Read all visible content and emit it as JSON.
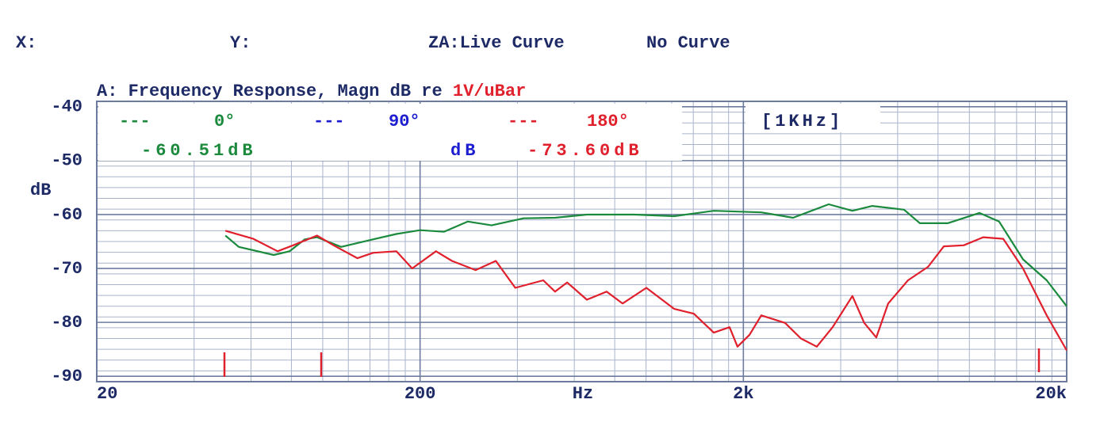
{
  "chart_data": {
    "type": "line",
    "header": [
      "X:",
      "Y:",
      "ZA:Live Curve",
      "No Curve"
    ],
    "title": "A: Frequency Response, Magn dB re",
    "title_unit": "1V/uBar",
    "note": "[1KHz]",
    "x_label": "Hz",
    "y_label": "dB",
    "log_x": true,
    "grid": true,
    "xlim": [
      20,
      20000
    ],
    "xticks": [
      20,
      200,
      {
        "value": 2000,
        "label": "2k"
      },
      {
        "value": 20000,
        "label": "20k"
      }
    ],
    "ylim": [
      -91,
      -39
    ],
    "yticks": [
      -40,
      -50,
      -60,
      -70,
      -80,
      -90
    ],
    "readouts": [
      "-60.51dB",
      "dB",
      "-73.60dB"
    ],
    "series": [
      {
        "name": "0°",
        "color": "#1b8a3c",
        "x": [
          50,
          55,
          70.5,
          79,
          88,
          96,
          114,
          143,
          169,
          200,
          237,
          281,
          333,
          418,
          523,
          656,
          921,
          1222,
          1620,
          2272,
          2850,
          3672,
          4347,
          5010,
          6280,
          7030,
          8570,
          10740,
          12360,
          14650,
          17350,
          20000
        ],
        "values": [
          -63.9,
          -66,
          -67.5,
          -66.8,
          -64.6,
          -64.2,
          -66,
          -64.6,
          -63.6,
          -62.9,
          -63.2,
          -61.3,
          -62,
          -60.7,
          -60.6,
          -60,
          -60,
          -60.3,
          -59.3,
          -59.6,
          -60.6,
          -58.1,
          -59.3,
          -58.4,
          -59.1,
          -61.6,
          -61.6,
          -59.7,
          -61.3,
          -68.3,
          -72.2,
          -77
        ]
      },
      {
        "name": "90°",
        "color": "#1c1cd0",
        "x": [],
        "values": []
      },
      {
        "name": "180°",
        "color": "#e0202c",
        "x": [
          50,
          61,
          72.5,
          81,
          96,
          108,
          128,
          143,
          169,
          189,
          224,
          251,
          297,
          343,
          394,
          481,
          523,
          570,
          656,
          755,
          846,
          1002,
          1222,
          1406,
          1620,
          1812,
          1918,
          2090,
          2272,
          2692,
          3013,
          3374,
          3777,
          4347,
          4730,
          5152,
          5610,
          6460,
          7450,
          8340,
          9600,
          11040,
          12730,
          14650,
          17350,
          20000
        ],
        "values": [
          -63,
          -64.5,
          -66.8,
          -65.7,
          -63.9,
          -65.7,
          -68.1,
          -67.1,
          -66.8,
          -70,
          -66.8,
          -68.6,
          -70.3,
          -68.6,
          -73.6,
          -72.2,
          -74.3,
          -72.6,
          -75.8,
          -74.3,
          -76.5,
          -73.6,
          -77.5,
          -78.4,
          -81.9,
          -80.9,
          -84.5,
          -82.3,
          -78.7,
          -80.1,
          -83,
          -84.5,
          -80.9,
          -75.1,
          -80.1,
          -82.8,
          -76.5,
          -72.2,
          -69.7,
          -65.9,
          -65.7,
          -64.2,
          -64.5,
          -70,
          -78.7,
          -85.2
        ]
      }
    ]
  }
}
